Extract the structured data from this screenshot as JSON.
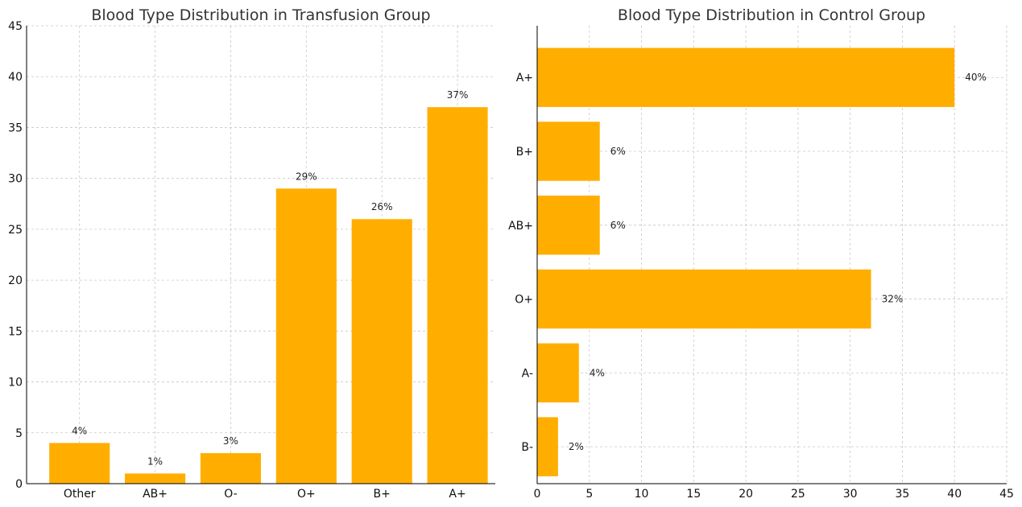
{
  "colors": {
    "bar": "#FFAE00"
  },
  "chart_data": [
    {
      "type": "bar",
      "orientation": "vertical",
      "title": "Blood Type Distribution in Transfusion Group",
      "categories": [
        "Other",
        "AB+",
        "O-",
        "O+",
        "B+",
        "A+"
      ],
      "values": [
        4,
        1,
        3,
        29,
        26,
        37
      ],
      "data_labels": [
        "4%",
        "1%",
        "3%",
        "29%",
        "26%",
        "37%"
      ],
      "ylim": [
        0,
        45
      ],
      "yticks": [
        0,
        5,
        10,
        15,
        20,
        25,
        30,
        35,
        40,
        45
      ],
      "grid": true
    },
    {
      "type": "bar",
      "orientation": "horizontal",
      "title": "Blood Type Distribution in Control Group",
      "categories": [
        "A+",
        "B+",
        "AB+",
        "O+",
        "A-",
        "B-"
      ],
      "values": [
        40,
        6,
        6,
        32,
        4,
        2
      ],
      "data_labels": [
        "40%",
        "6%",
        "6%",
        "32%",
        "4%",
        "2%"
      ],
      "xlim": [
        0,
        45
      ],
      "xticks": [
        0,
        5,
        10,
        15,
        20,
        25,
        30,
        35,
        40,
        45
      ],
      "grid": true
    }
  ]
}
